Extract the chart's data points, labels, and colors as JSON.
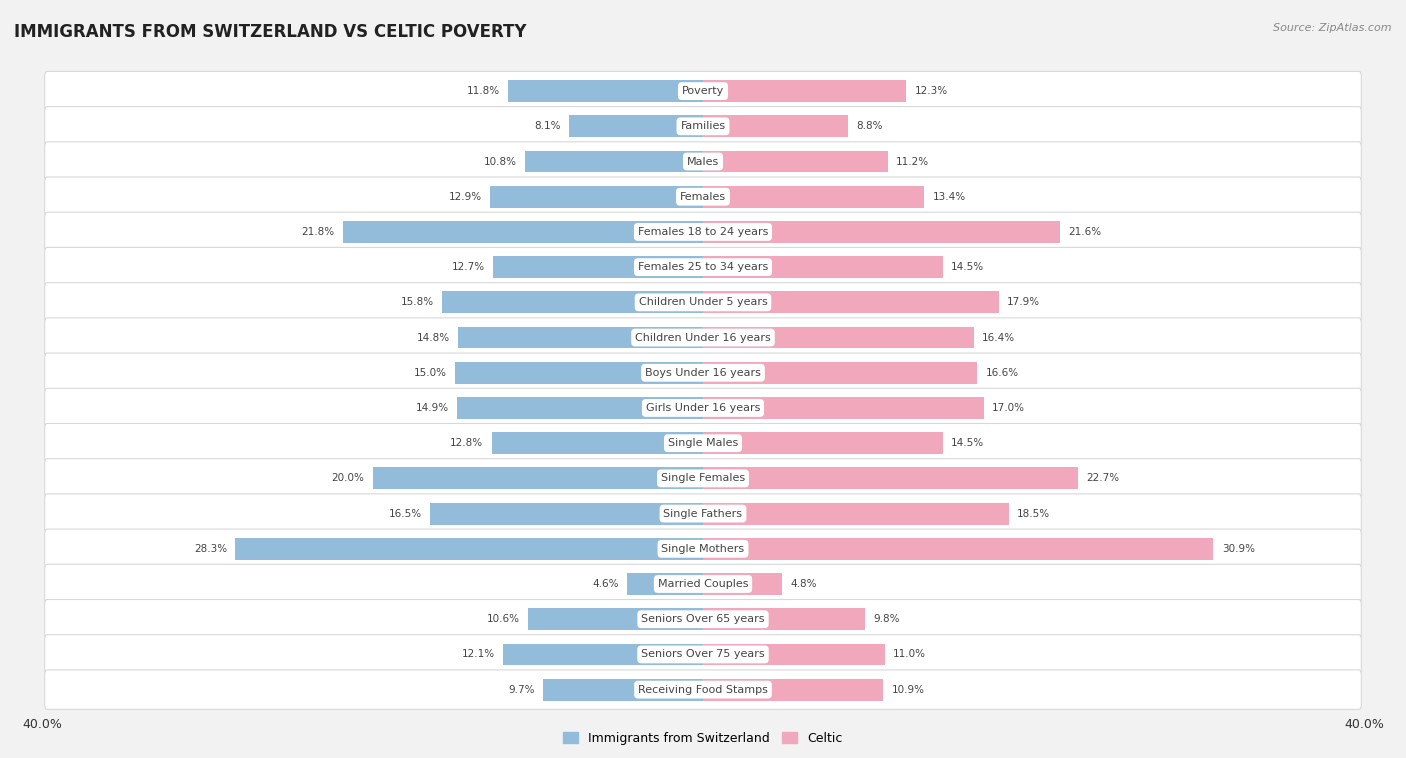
{
  "title": "IMMIGRANTS FROM SWITZERLAND VS CELTIC POVERTY",
  "source": "Source: ZipAtlas.com",
  "categories": [
    "Poverty",
    "Families",
    "Males",
    "Females",
    "Females 18 to 24 years",
    "Females 25 to 34 years",
    "Children Under 5 years",
    "Children Under 16 years",
    "Boys Under 16 years",
    "Girls Under 16 years",
    "Single Males",
    "Single Females",
    "Single Fathers",
    "Single Mothers",
    "Married Couples",
    "Seniors Over 65 years",
    "Seniors Over 75 years",
    "Receiving Food Stamps"
  ],
  "switzerland_values": [
    11.8,
    8.1,
    10.8,
    12.9,
    21.8,
    12.7,
    15.8,
    14.8,
    15.0,
    14.9,
    12.8,
    20.0,
    16.5,
    28.3,
    4.6,
    10.6,
    12.1,
    9.7
  ],
  "celtic_values": [
    12.3,
    8.8,
    11.2,
    13.4,
    21.6,
    14.5,
    17.9,
    16.4,
    16.6,
    17.0,
    14.5,
    22.7,
    18.5,
    30.9,
    4.8,
    9.8,
    11.0,
    10.9
  ],
  "switzerland_color": "#92bcd9",
  "celtic_color": "#f2a8bc",
  "background_color": "#f2f2f2",
  "row_color": "#ffffff",
  "xlim": 40.0,
  "title_fontsize": 12,
  "label_fontsize": 8,
  "value_fontsize": 7.5,
  "legend_fontsize": 9
}
